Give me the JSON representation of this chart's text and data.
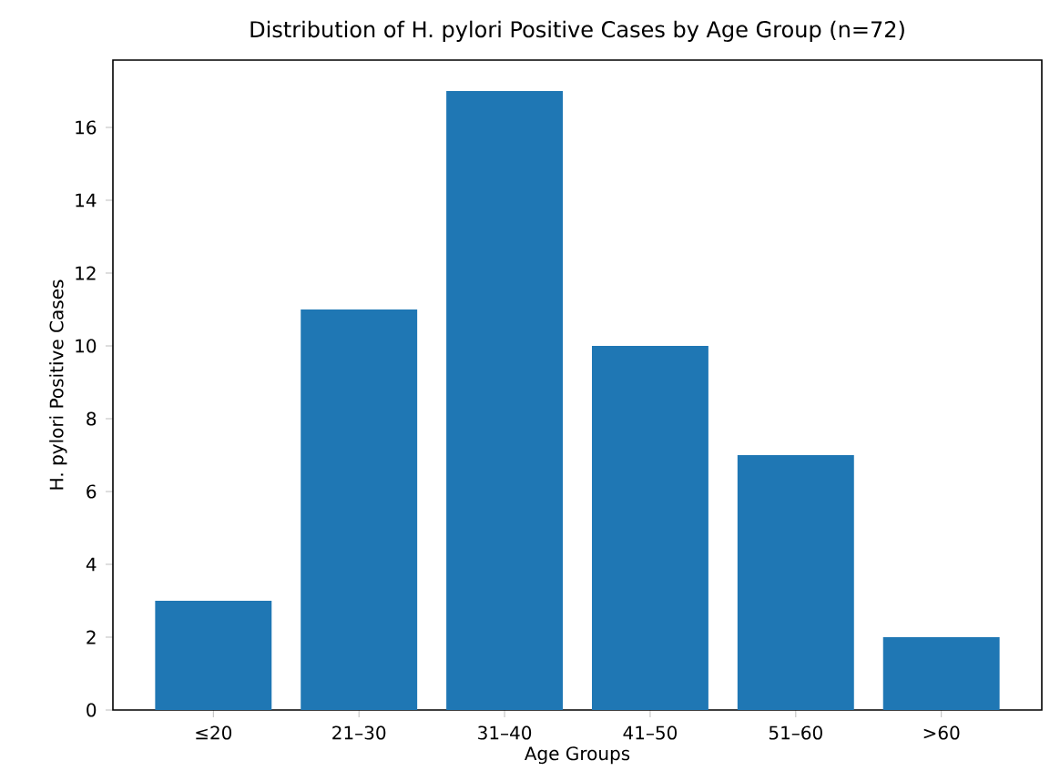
{
  "chart_data": {
    "type": "bar",
    "title": "Distribution of H. pylori Positive Cases by Age Group (n=72)",
    "xlabel": "Age Groups",
    "ylabel": "H. pylori Positive Cases",
    "categories": [
      "≤20",
      "21–30",
      "31–40",
      "41–50",
      "51–60",
      ">60"
    ],
    "values": [
      3,
      11,
      17,
      10,
      7,
      2
    ],
    "color": "#1f77b4",
    "ylim": [
      0,
      17.85
    ],
    "yticks": [
      0,
      2,
      4,
      6,
      8,
      10,
      12,
      14,
      16
    ]
  }
}
